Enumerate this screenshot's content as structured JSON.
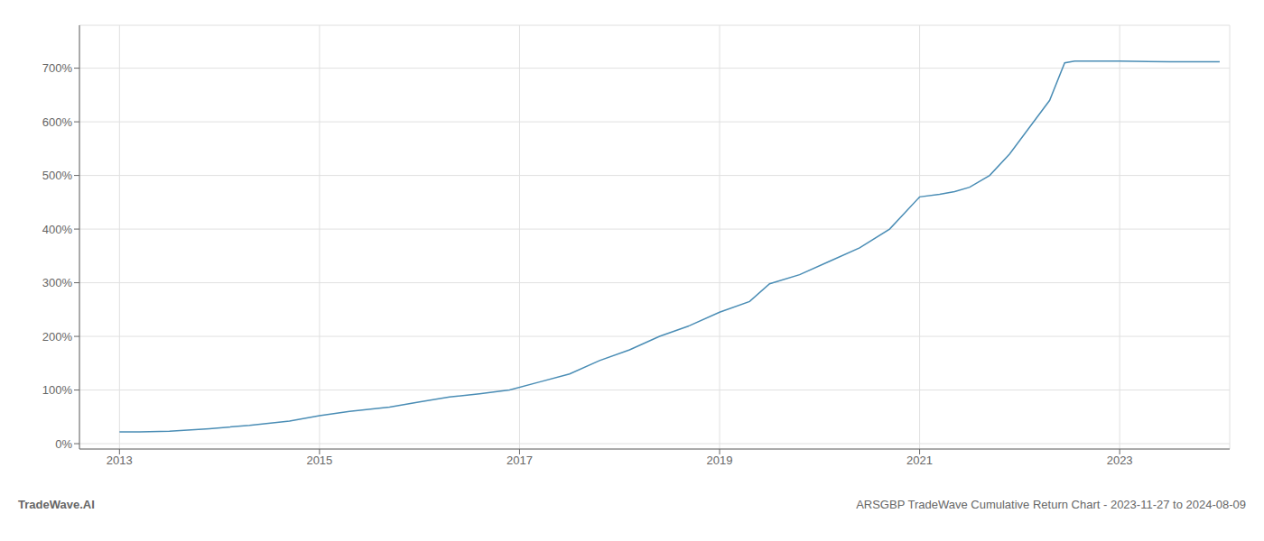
{
  "chart_data": {
    "type": "line",
    "title": "ARSGBP TradeWave Cumulative Return Chart - 2023-11-27 to 2024-08-09",
    "annotations": [
      "TradeWave.AI"
    ],
    "x": [
      2013.0,
      2013.2,
      2013.5,
      2013.9,
      2014.3,
      2014.7,
      2015.0,
      2015.3,
      2015.7,
      2016.0,
      2016.3,
      2016.6,
      2016.9,
      2017.2,
      2017.5,
      2017.8,
      2018.1,
      2018.4,
      2018.7,
      2019.0,
      2019.3,
      2019.5,
      2019.8,
      2020.1,
      2020.4,
      2020.7,
      2021.0,
      2021.2,
      2021.35,
      2021.5,
      2021.7,
      2021.9,
      2022.1,
      2022.3,
      2022.45,
      2022.55,
      2022.7,
      2023.0,
      2023.5,
      2024.0
    ],
    "values": [
      22,
      22,
      23,
      28,
      34,
      42,
      52,
      60,
      68,
      78,
      87,
      93,
      100,
      115,
      130,
      155,
      175,
      200,
      220,
      245,
      265,
      298,
      315,
      340,
      365,
      400,
      460,
      465,
      470,
      478,
      500,
      540,
      590,
      640,
      710,
      713,
      713,
      713,
      712,
      712
    ],
    "color": "#4a8db5",
    "xlim": [
      2012.6,
      2024.1
    ],
    "ylim": [
      -10,
      780
    ],
    "xticks": [
      2013,
      2015,
      2017,
      2019,
      2021,
      2023
    ],
    "yticks": [
      {
        "value": 0,
        "label": "0%"
      },
      {
        "value": 100,
        "label": "100%"
      },
      {
        "value": 200,
        "label": "200%"
      },
      {
        "value": 300,
        "label": "300%"
      },
      {
        "value": 400,
        "label": "400%"
      },
      {
        "value": 500,
        "label": "500%"
      },
      {
        "value": 600,
        "label": "600%"
      },
      {
        "value": 700,
        "label": "700%"
      }
    ],
    "grid": true
  }
}
